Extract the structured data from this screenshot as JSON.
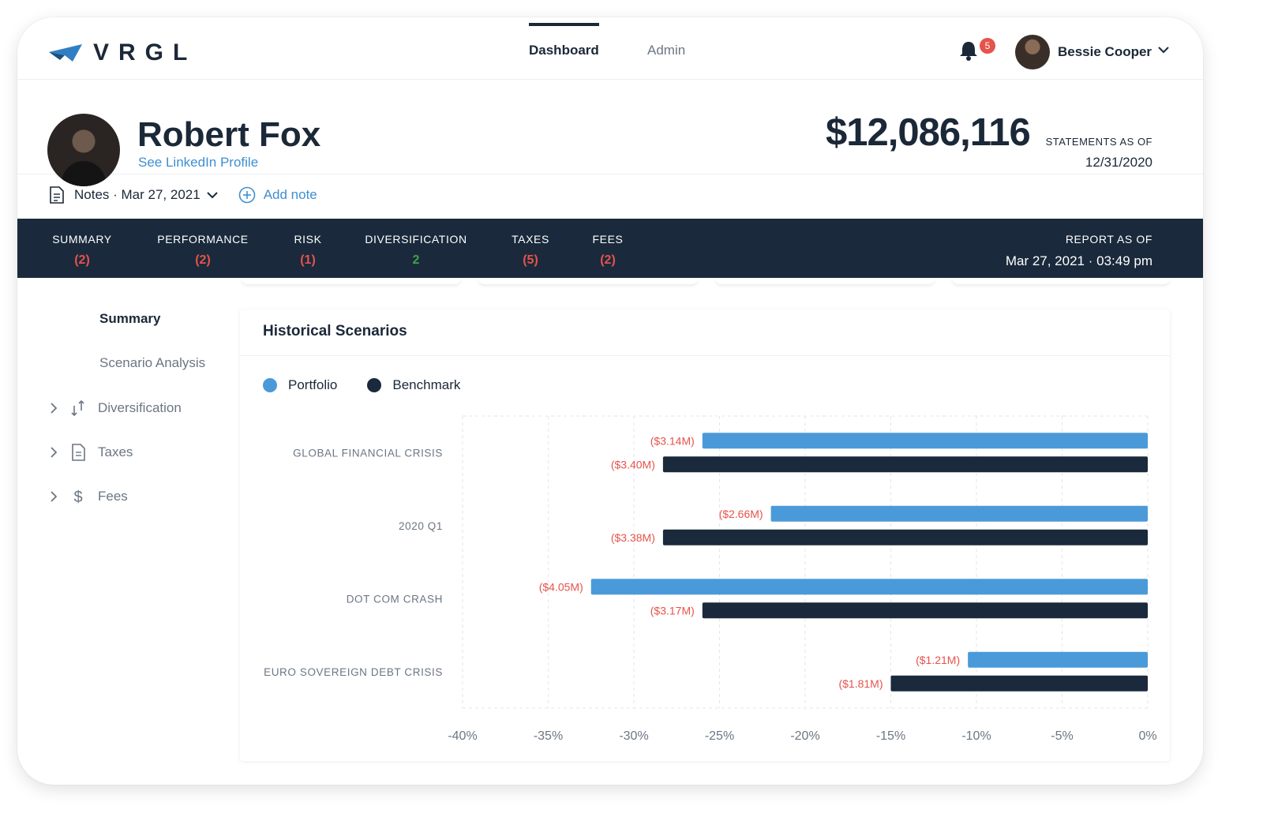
{
  "app": {
    "logo_text": "VRGL",
    "nav": [
      {
        "label": "Dashboard",
        "active": true
      },
      {
        "label": "Admin",
        "active": false
      }
    ],
    "notification_count": "5",
    "user": {
      "name": "Bessie Cooper"
    }
  },
  "client": {
    "name": "Robert Fox",
    "linkedin_label": "See LinkedIn Profile",
    "balance": "$12,086,116",
    "statements_label": "STATEMENTS AS OF",
    "statements_date": "12/31/2020"
  },
  "notes": {
    "label": "Notes · Mar 27, 2021",
    "add_label": "Add note"
  },
  "tabs": [
    {
      "label": "SUMMARY",
      "count": "(2)",
      "color": "#e5534b"
    },
    {
      "label": "PERFORMANCE",
      "count": "(2)",
      "color": "#e5534b"
    },
    {
      "label": "RISK",
      "count": "(1)",
      "color": "#e5534b"
    },
    {
      "label": "DIVERSIFICATION",
      "count": "2",
      "color": "#3fa34d"
    },
    {
      "label": "TAXES",
      "count": "(5)",
      "color": "#e5534b"
    },
    {
      "label": "FEES",
      "count": "(2)",
      "color": "#e5534b"
    }
  ],
  "report": {
    "label": "REPORT AS OF",
    "date": "Mar 27, 2021 · 03:49 pm"
  },
  "sidebar": {
    "items": [
      {
        "label": "Summary",
        "active": true
      },
      {
        "label": "Scenario Analysis",
        "active": false
      },
      {
        "label": "Diversification",
        "icon": "arrows-icon"
      },
      {
        "label": "Taxes",
        "icon": "document-icon"
      },
      {
        "label": "Fees",
        "icon": "dollar-icon"
      }
    ]
  },
  "panel": {
    "title": "Historical Scenarios",
    "legend": [
      {
        "name": "Portfolio",
        "color": "#4a9ad9"
      },
      {
        "name": "Benchmark",
        "color": "#1a2a3c"
      }
    ]
  },
  "chart_data": {
    "type": "bar",
    "orientation": "horizontal",
    "title": "Historical Scenarios",
    "categories": [
      "GLOBAL FINANCIAL CRISIS",
      "2020 Q1",
      "DOT COM CRASH",
      "EURO SOVEREIGN DEBT CRISIS"
    ],
    "series": [
      {
        "name": "Portfolio",
        "color": "#4a9ad9",
        "values": [
          -26,
          -22,
          -32.5,
          -10.5
        ],
        "labels": [
          "($3.14M)",
          "($2.66M)",
          "($4.05M)",
          "($1.21M)"
        ]
      },
      {
        "name": "Benchmark",
        "color": "#1a2a3c",
        "values": [
          -28.3,
          -28.3,
          -26,
          -15
        ],
        "labels": [
          "($3.40M)",
          "($3.38M)",
          "($3.17M)",
          "($1.81M)"
        ]
      }
    ],
    "xlim": [
      -40,
      0
    ],
    "xticks": [
      "-40%",
      "-35%",
      "-30%",
      "-25%",
      "-20%",
      "-15%",
      "-10%",
      "-5%",
      "0%"
    ],
    "grid": true,
    "label_color": "#e5534b",
    "legend": "top-left"
  }
}
